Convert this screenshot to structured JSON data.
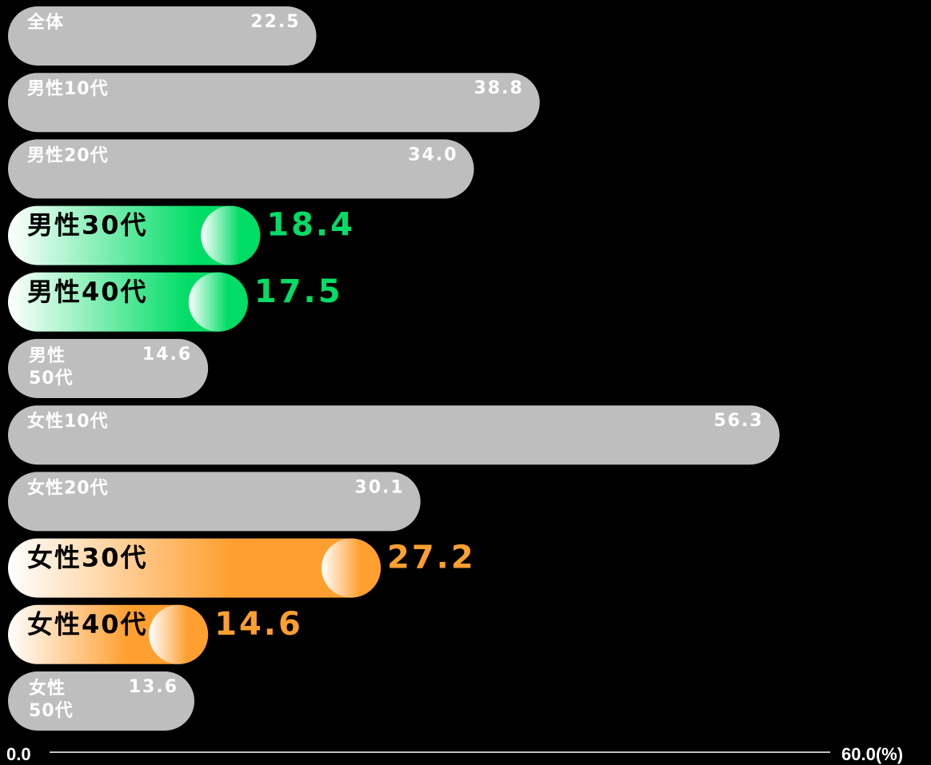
{
  "chart_data": {
    "type": "bar",
    "orientation": "horizontal",
    "unit": "(%)",
    "xlim": [
      0.0,
      60.0
    ],
    "axis": {
      "min_label": "0.0",
      "max_label": "60.0",
      "unit_label": "(%)"
    },
    "colors": {
      "default_bar": "#bebebe",
      "male_highlight": "#00dd66",
      "female_highlight": "#ff9f30"
    },
    "categories": [
      {
        "label": "全体",
        "value": 22.5,
        "value_label": "22.5",
        "style": "normal"
      },
      {
        "label": "男性10代",
        "value": 38.8,
        "value_label": "38.8",
        "style": "normal"
      },
      {
        "label": "男性20代",
        "value": 34.0,
        "value_label": "34.0",
        "style": "normal"
      },
      {
        "label": "男性30代",
        "value": 18.4,
        "value_label": "18.4",
        "style": "highlight-male"
      },
      {
        "label": "男性40代",
        "value": 17.5,
        "value_label": "17.5",
        "style": "highlight-male"
      },
      {
        "label": "男性50代",
        "label_lines": [
          "男性",
          "50代"
        ],
        "value": 14.6,
        "value_label": "14.6",
        "style": "normal"
      },
      {
        "label": "女性10代",
        "value": 56.3,
        "value_label": "56.3",
        "style": "normal"
      },
      {
        "label": "女性20代",
        "value": 30.1,
        "value_label": "30.1",
        "style": "normal"
      },
      {
        "label": "女性30代",
        "value": 27.2,
        "value_label": "27.2",
        "style": "highlight-female"
      },
      {
        "label": "女性40代",
        "value": 14.6,
        "value_label": "14.6",
        "style": "highlight-female"
      },
      {
        "label": "女性50代",
        "label_lines": [
          "女性",
          "50代"
        ],
        "value": 13.6,
        "value_label": "13.6",
        "style": "normal"
      }
    ]
  }
}
